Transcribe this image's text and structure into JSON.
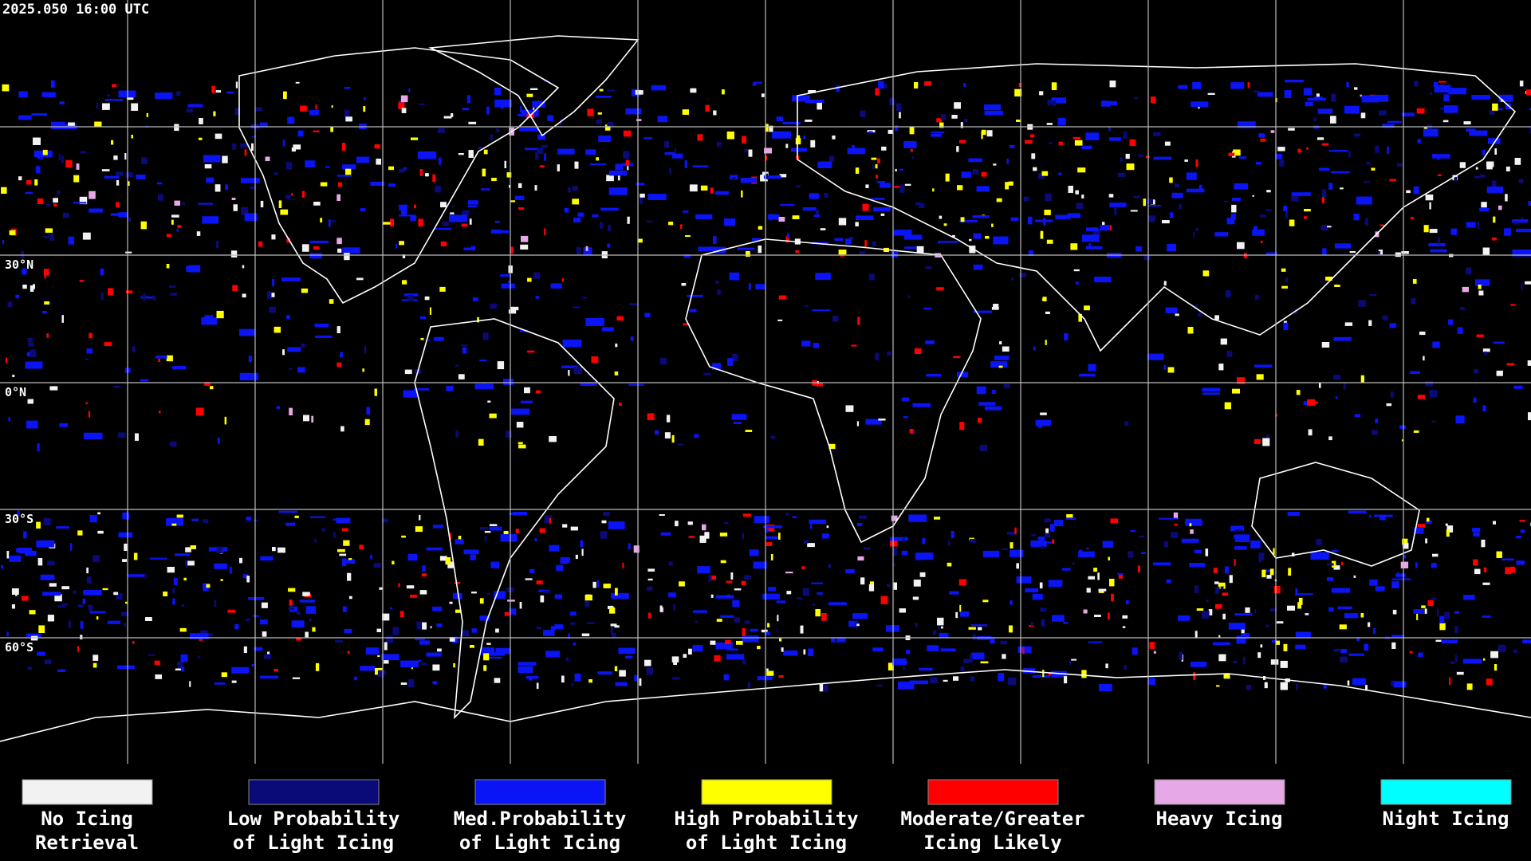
{
  "header": {
    "title": "2025.050 16:00 UTC"
  },
  "latitude_labels": [
    "30°N",
    "0°N",
    "30°S",
    "60°S"
  ],
  "legend": [
    {
      "lines": [
        "No Icing",
        "Retrieval"
      ],
      "color": "#f2f2f2"
    },
    {
      "lines": [
        "Low Probability",
        "of Light Icing"
      ],
      "color": "#0a0a78"
    },
    {
      "lines": [
        "Med.Probability",
        "of Light Icing"
      ],
      "color": "#0a14f5"
    },
    {
      "lines": [
        "High Probability",
        "of Light Icing"
      ],
      "color": "#ffff00"
    },
    {
      "lines": [
        "Moderate/Greater",
        "Icing Likely"
      ],
      "color": "#ff0000"
    },
    {
      "lines": [
        "Heavy Icing"
      ],
      "color": "#e6a8e6"
    },
    {
      "lines": [
        "Night Icing"
      ],
      "color": "#00ffff"
    }
  ]
}
